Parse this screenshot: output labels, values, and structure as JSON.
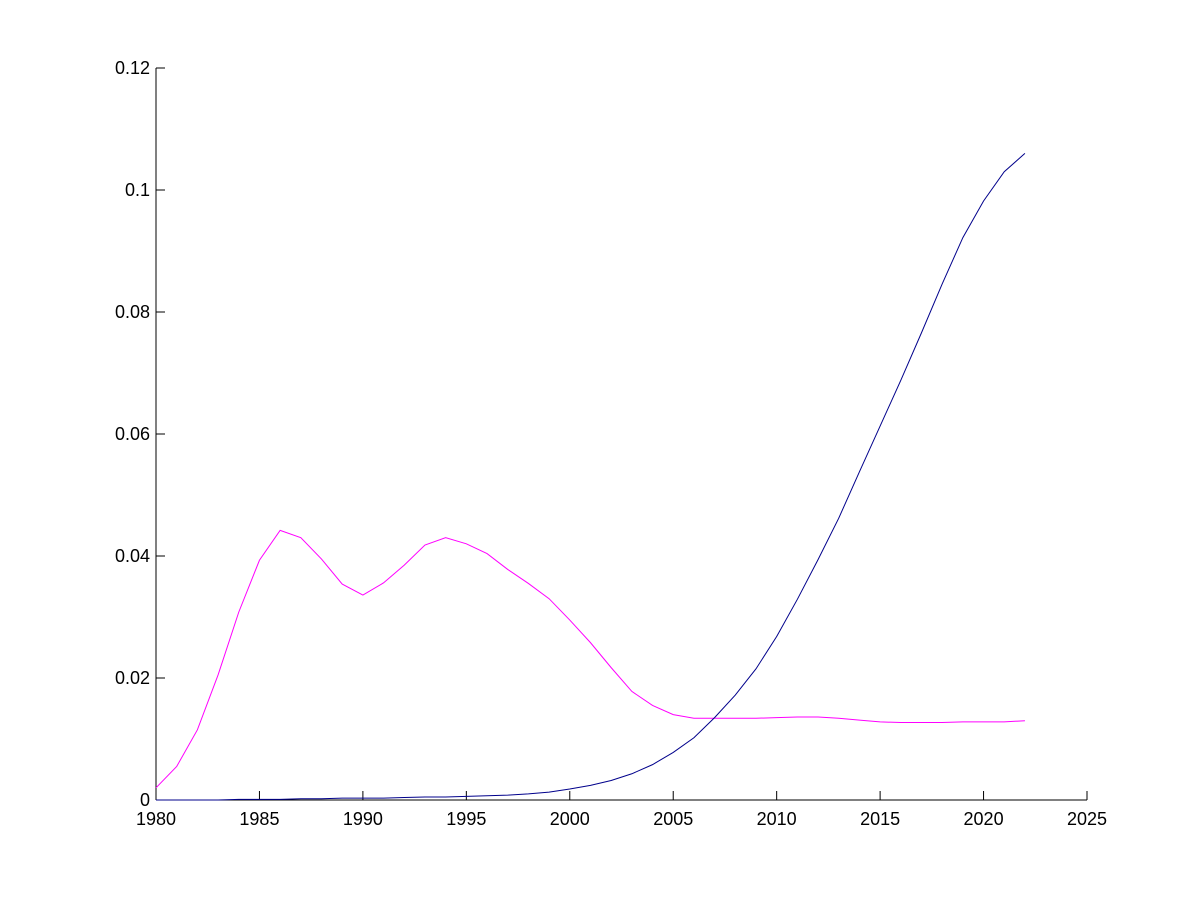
{
  "chart_data": {
    "type": "line",
    "title": "",
    "xlabel": "",
    "ylabel": "",
    "xlim": [
      1980,
      2025
    ],
    "ylim": [
      0,
      0.12
    ],
    "xticks": [
      "1980",
      "1985",
      "1990",
      "1995",
      "2000",
      "2005",
      "2010",
      "2015",
      "2020",
      "2025"
    ],
    "yticks": [
      "0",
      "0.02",
      "0.04",
      "0.06",
      "0.08",
      "0.1",
      "0.12"
    ],
    "grid": false,
    "legend": "none",
    "x": [
      1980,
      1981,
      1982,
      1983,
      1984,
      1985,
      1986,
      1987,
      1988,
      1989,
      1990,
      1991,
      1992,
      1993,
      1994,
      1995,
      1996,
      1997,
      1998,
      1999,
      2000,
      2001,
      2002,
      2003,
      2004,
      2005,
      2006,
      2007,
      2008,
      2009,
      2010,
      2011,
      2012,
      2013,
      2014,
      2015,
      2016,
      2017,
      2018,
      2019,
      2020,
      2021,
      2022
    ],
    "series": [
      {
        "color": "#ff00ff",
        "values": [
          0.002,
          0.0055,
          0.0115,
          0.0205,
          0.0308,
          0.0393,
          0.0442,
          0.043,
          0.0395,
          0.0354,
          0.0336,
          0.0356,
          0.0385,
          0.0418,
          0.043,
          0.042,
          0.0404,
          0.0378,
          0.0355,
          0.033,
          0.0295,
          0.0258,
          0.0217,
          0.0178,
          0.0155,
          0.014,
          0.0134,
          0.0134,
          0.0134,
          0.0134,
          0.0135,
          0.0136,
          0.0136,
          0.0134,
          0.0131,
          0.0128,
          0.0127,
          0.0127,
          0.0127,
          0.0128,
          0.0128,
          0.0128,
          0.013
        ]
      },
      {
        "color": "#00008b",
        "values": [
          0.0,
          0.0,
          0.0,
          0.0,
          0.0001,
          0.0001,
          0.0001,
          0.0002,
          0.0002,
          0.0003,
          0.0003,
          0.0003,
          0.0004,
          0.0005,
          0.0005,
          0.0006,
          0.0007,
          0.0008,
          0.001,
          0.0013,
          0.0018,
          0.0024,
          0.0032,
          0.0043,
          0.0058,
          0.0078,
          0.0102,
          0.0135,
          0.0172,
          0.0215,
          0.0268,
          0.0329,
          0.0394,
          0.0462,
          0.0538,
          0.0613,
          0.0688,
          0.0766,
          0.0846,
          0.0922,
          0.0982,
          0.103,
          0.106
        ]
      }
    ]
  }
}
